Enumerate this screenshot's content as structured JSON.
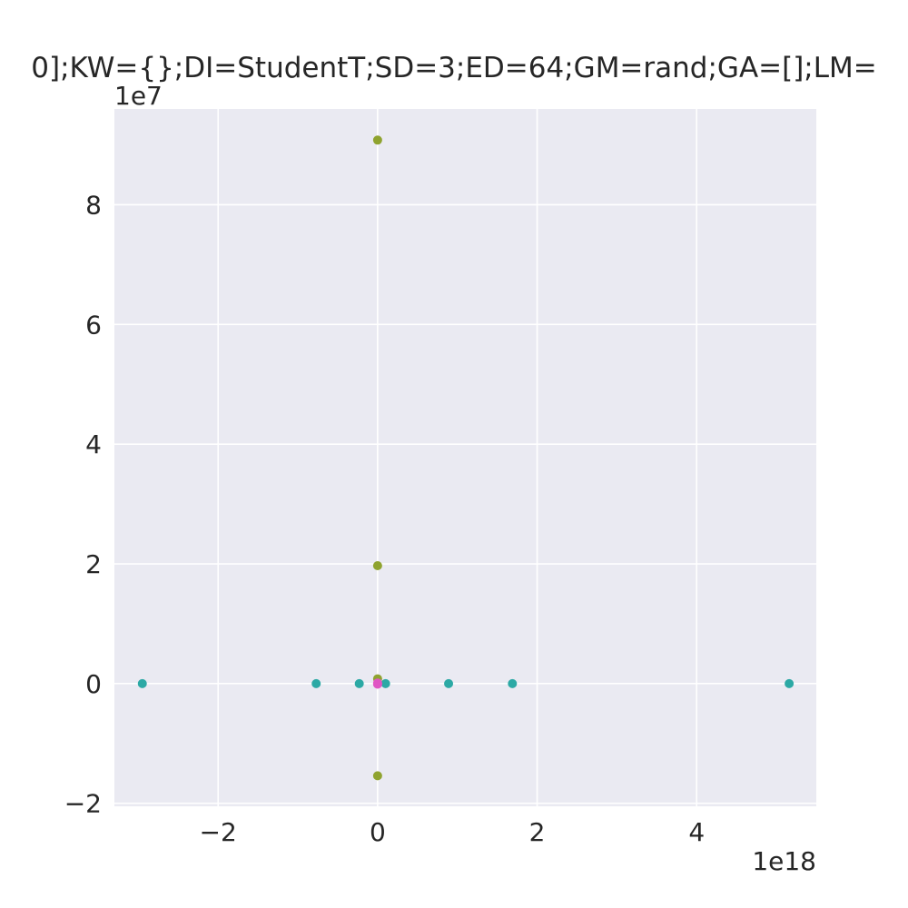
{
  "chart_data": {
    "type": "scatter",
    "title": "0];KW={};DI=StudentT;SD=3;ED=64;GM=rand;GA=[];LM=",
    "xlabel": "",
    "ylabel": "",
    "x_offset_label": "1e18",
    "y_offset_label": "1e7",
    "xlim": [
      -3.3,
      5.5
    ],
    "ylim": [
      -2.05,
      9.6
    ],
    "x_ticks": [
      -2,
      0,
      2,
      4
    ],
    "x_tick_labels": [
      "−2",
      "0",
      "2",
      "4"
    ],
    "y_ticks": [
      -2,
      0,
      2,
      4,
      6,
      8
    ],
    "y_tick_labels": [
      "−2",
      "0",
      "2",
      "4",
      "6",
      "8"
    ],
    "grid": true,
    "background": "#eaeaf2",
    "grid_color": "#ffffff",
    "series": [
      {
        "color": "#2ca9a5",
        "points": [
          [
            -2.95,
            0
          ],
          [
            -0.77,
            0
          ],
          [
            -0.23,
            0
          ],
          [
            0.1,
            0
          ],
          [
            0.89,
            0
          ],
          [
            1.69,
            0
          ],
          [
            5.16,
            0
          ]
        ]
      },
      {
        "color": "#8fa32f",
        "points": [
          [
            0,
            9.08
          ],
          [
            0,
            1.97
          ],
          [
            0,
            0.08
          ],
          [
            0,
            -1.54
          ]
        ]
      },
      {
        "color": "#e056c4",
        "points": [
          [
            0,
            0
          ],
          [
            0,
            0.01
          ],
          [
            0,
            -0.01
          ]
        ]
      }
    ]
  }
}
